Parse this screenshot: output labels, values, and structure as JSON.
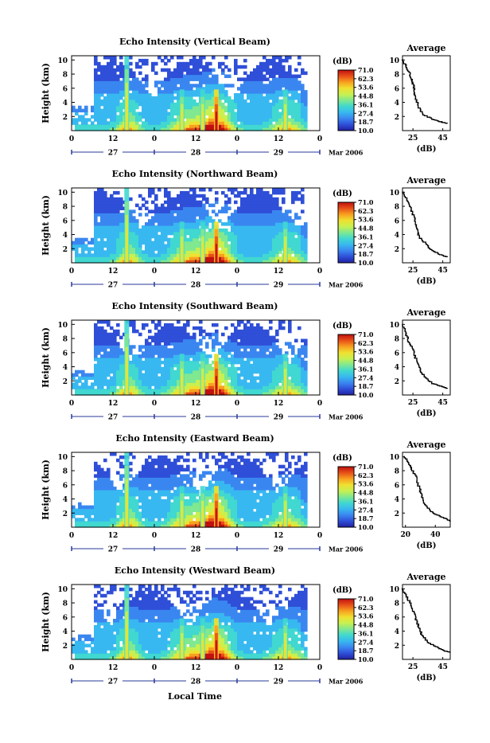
{
  "global": {
    "time_axis_label": "Local Time",
    "date_label": "Mar 2006",
    "colorbar_unit": "(dB)",
    "average_title": "Average",
    "average_xlabel": "(dB)",
    "height_label": "Height (km)"
  },
  "colorbar_ticks": [
    "71.0",
    "62.3",
    "53.6",
    "44.8",
    "36.1",
    "27.4",
    "18.7",
    "10.0"
  ],
  "colormap": [
    "#2020a0",
    "#2f4fd8",
    "#3a86f0",
    "#38b8f0",
    "#40d8d0",
    "#80e890",
    "#c8f050",
    "#f0e030",
    "#f8a020",
    "#e85018",
    "#c01010"
  ],
  "time_ticks": [
    "0",
    "12",
    "0",
    "12",
    "0",
    "12",
    "0"
  ],
  "day_labels": [
    "27",
    "28",
    "29"
  ],
  "height_ticks": [
    "2",
    "4",
    "6",
    "8",
    "10"
  ],
  "panels": [
    {
      "title": "Echo Intensity (Vertical Beam)",
      "chart_data": {
        "type": "heatmap",
        "title": "Echo Intensity (Vertical Beam)",
        "xlabel": "Local Time",
        "ylabel": "Height (km)",
        "xlim_hours": [
          0,
          72
        ],
        "ylim_km": [
          0,
          10
        ],
        "colorbar_range_db": [
          10.0,
          71.0
        ],
        "rain_events_hours": [
          16,
          32,
          38,
          42,
          62
        ],
        "note_max_db": 71.0
      },
      "average": {
        "type": "line",
        "x_ticks": [
          "25",
          "45"
        ],
        "x_range_db": [
          18,
          50
        ],
        "y_range_km": [
          0,
          10
        ],
        "points_db_km": [
          [
            18,
            10
          ],
          [
            20,
            9.2
          ],
          [
            22,
            8.4
          ],
          [
            24,
            7.4
          ],
          [
            25,
            6.6
          ],
          [
            26,
            5.4
          ],
          [
            27,
            4.4
          ],
          [
            29,
            3.2
          ],
          [
            32,
            2.2
          ],
          [
            38,
            1.6
          ],
          [
            44,
            1.2
          ],
          [
            48,
            1.0
          ]
        ]
      }
    },
    {
      "title": "Echo Intensity (Northward Beam)",
      "chart_data": {
        "type": "heatmap",
        "title": "Echo Intensity (Northward Beam)",
        "xlabel": "Local Time",
        "ylabel": "Height (km)",
        "xlim_hours": [
          0,
          72
        ],
        "ylim_km": [
          0,
          10
        ],
        "colorbar_range_db": [
          10.0,
          71.0
        ],
        "rain_events_hours": [
          16,
          32,
          38,
          42,
          62
        ]
      },
      "average": {
        "type": "line",
        "x_ticks": [
          "25",
          "45"
        ],
        "x_range_db": [
          18,
          50
        ],
        "y_range_km": [
          0,
          10
        ],
        "points_db_km": [
          [
            18,
            10
          ],
          [
            21,
            8.8
          ],
          [
            23,
            7.8
          ],
          [
            25,
            6.8
          ],
          [
            27,
            5.4
          ],
          [
            28,
            4.6
          ],
          [
            29,
            3.6
          ],
          [
            33,
            2.8
          ],
          [
            36,
            2.0
          ],
          [
            42,
            1.2
          ],
          [
            48,
            0.8
          ]
        ]
      }
    },
    {
      "title": "Echo Intensity (Southward Beam)",
      "chart_data": {
        "type": "heatmap",
        "title": "Echo Intensity (Southward Beam)",
        "xlabel": "Local Time",
        "ylabel": "Height (km)",
        "xlim_hours": [
          0,
          72
        ],
        "ylim_km": [
          0,
          10
        ],
        "colorbar_range_db": [
          10.0,
          71.0
        ],
        "rain_events_hours": [
          16,
          32,
          38,
          42,
          62
        ]
      },
      "average": {
        "type": "line",
        "x_ticks": [
          "25",
          "45"
        ],
        "x_range_db": [
          18,
          50
        ],
        "y_range_km": [
          0,
          10
        ],
        "points_db_km": [
          [
            18,
            10
          ],
          [
            20,
            8.8
          ],
          [
            22,
            7.6
          ],
          [
            24,
            6.8
          ],
          [
            26,
            5.6
          ],
          [
            28,
            4.4
          ],
          [
            30,
            3.4
          ],
          [
            33,
            2.4
          ],
          [
            38,
            1.6
          ],
          [
            44,
            1.2
          ],
          [
            48,
            0.9
          ]
        ]
      }
    },
    {
      "title": "Echo Intensity (Eastward Beam)",
      "chart_data": {
        "type": "heatmap",
        "title": "Echo Intensity (Eastward Beam)",
        "xlabel": "Local Time",
        "ylabel": "Height (km)",
        "xlim_hours": [
          0,
          72
        ],
        "ylim_km": [
          0,
          10
        ],
        "colorbar_range_db": [
          10.0,
          71.0
        ],
        "rain_events_hours": [
          16,
          32,
          38,
          42,
          62
        ]
      },
      "average": {
        "type": "line",
        "x_ticks": [
          "20",
          "40"
        ],
        "x_range_db": [
          18,
          50
        ],
        "y_range_km": [
          0,
          10
        ],
        "points_db_km": [
          [
            19,
            10
          ],
          [
            22,
            9.0
          ],
          [
            24,
            8.2
          ],
          [
            27,
            7.0
          ],
          [
            29,
            5.6
          ],
          [
            31,
            4.4
          ],
          [
            33,
            3.2
          ],
          [
            37,
            2.2
          ],
          [
            42,
            1.6
          ],
          [
            47,
            1.2
          ],
          [
            50,
            0.8
          ]
        ]
      }
    },
    {
      "title": "Echo Intensity (Westward Beam)",
      "chart_data": {
        "type": "heatmap",
        "title": "Echo Intensity (Westward Beam)",
        "xlabel": "Local Time",
        "ylabel": "Height (km)",
        "xlim_hours": [
          0,
          72
        ],
        "ylim_km": [
          0,
          10
        ],
        "colorbar_range_db": [
          10.0,
          71.0
        ],
        "rain_events_hours": [
          16,
          32,
          38,
          42,
          62
        ]
      },
      "average": {
        "type": "line",
        "x_ticks": [
          "25",
          "45"
        ],
        "x_range_db": [
          18,
          50
        ],
        "y_range_km": [
          0,
          10
        ],
        "points_db_km": [
          [
            18,
            10
          ],
          [
            20,
            9.0
          ],
          [
            23,
            8.0
          ],
          [
            25,
            6.8
          ],
          [
            27,
            5.6
          ],
          [
            29,
            4.4
          ],
          [
            31,
            3.4
          ],
          [
            35,
            2.4
          ],
          [
            40,
            1.8
          ],
          [
            46,
            1.2
          ],
          [
            50,
            1.0
          ]
        ]
      }
    }
  ]
}
